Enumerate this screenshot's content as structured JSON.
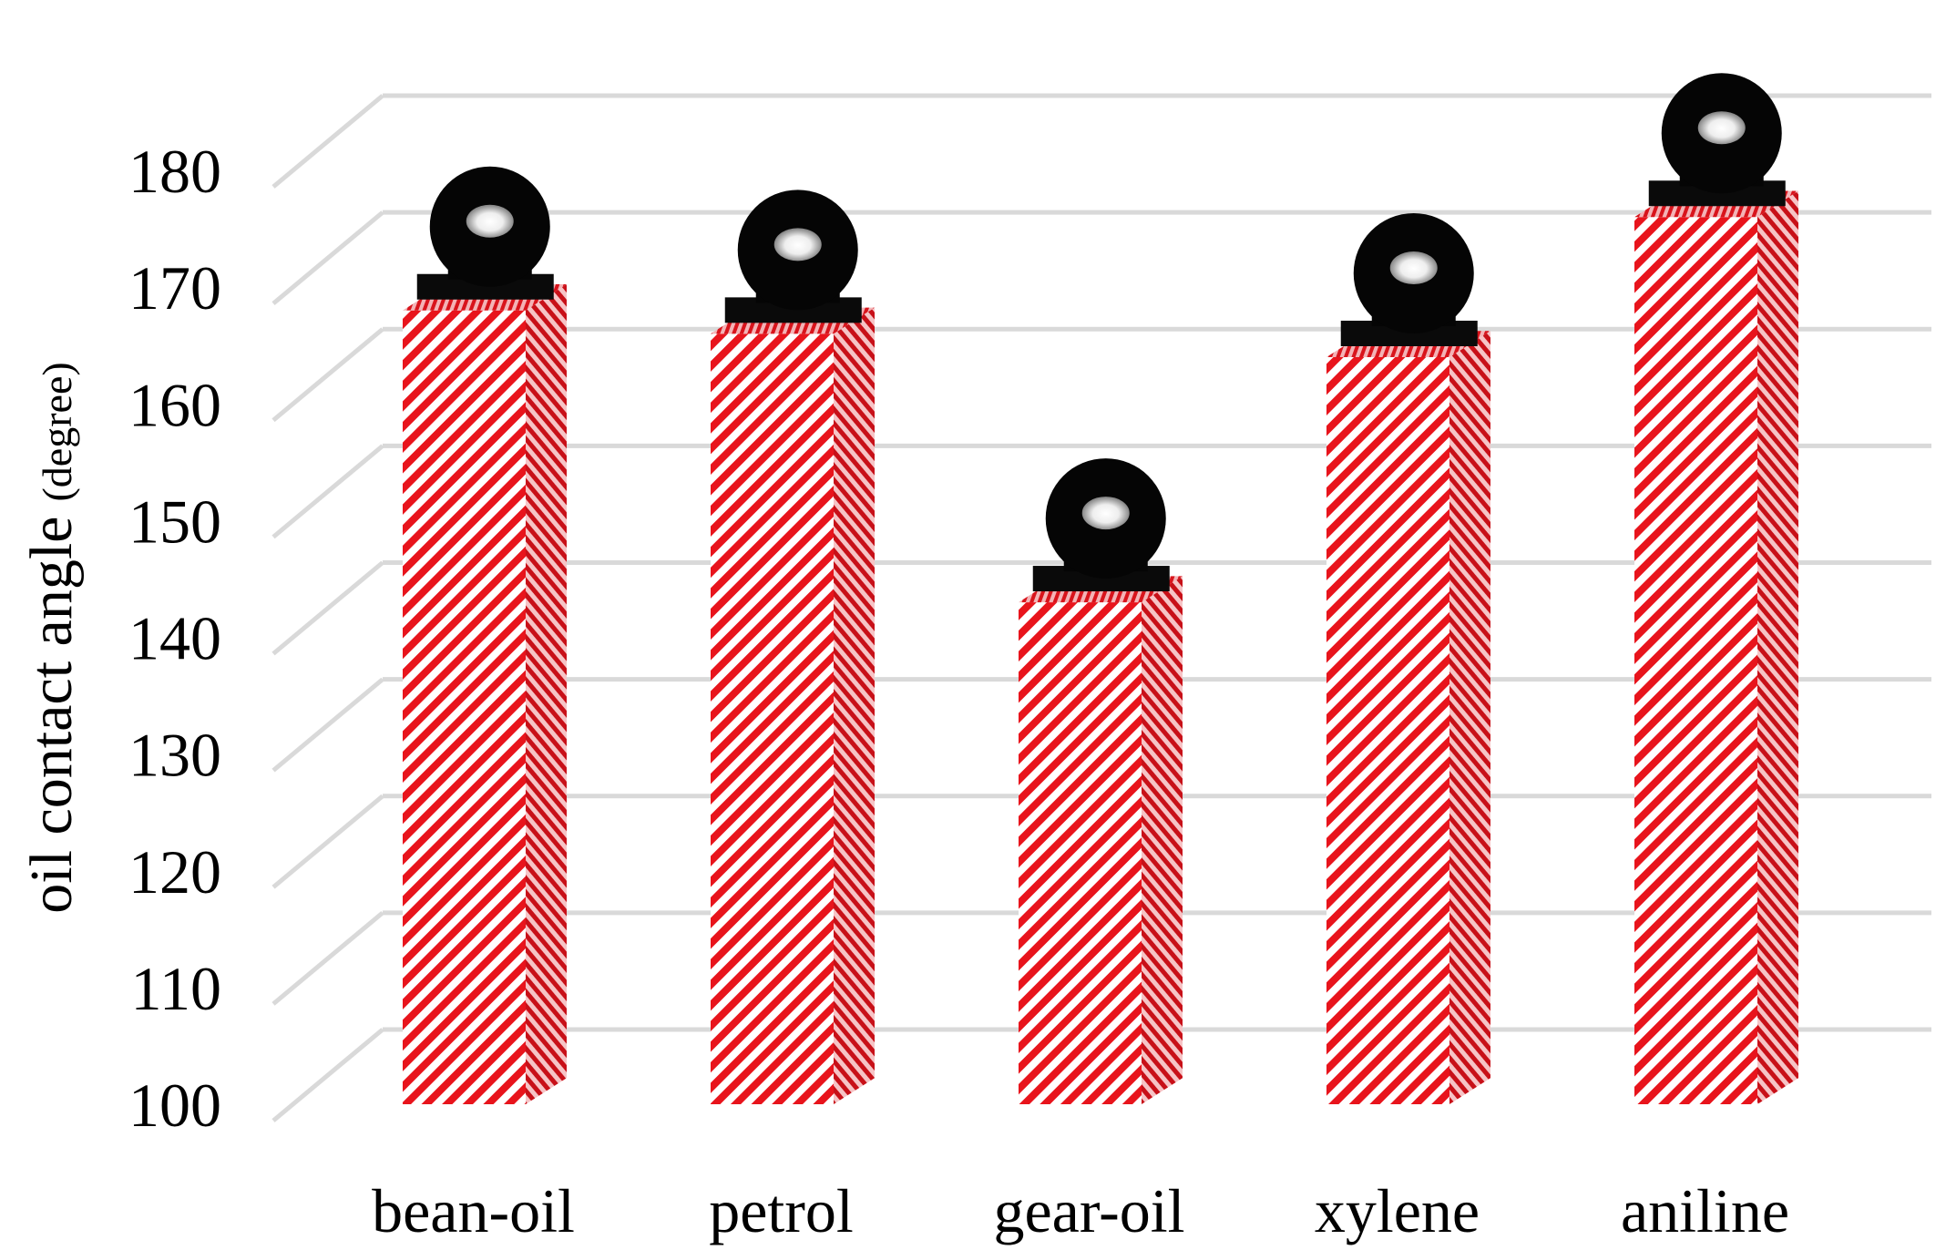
{
  "chart_data": {
    "type": "bar",
    "style": "3d-column",
    "categories": [
      "bean-oil",
      "petrol",
      "gear-oil",
      "xylene",
      "aniline"
    ],
    "values": [
      168,
      166,
      143,
      164,
      176
    ],
    "ylabel_main": "oil contact angle",
    "ylabel_unit": "(degree)",
    "xlabel": "",
    "ylim": [
      100,
      180
    ],
    "yticks": [
      100,
      110,
      120,
      130,
      140,
      150,
      160,
      170,
      180
    ],
    "grid": true,
    "legend": "none",
    "annotations": [
      "droplet-image"
    ],
    "colors": {
      "bar_stripe": "#e8141c",
      "bar_background": "#ffffff",
      "gridline": "#d9d9d9",
      "droplet": "#000000"
    }
  }
}
